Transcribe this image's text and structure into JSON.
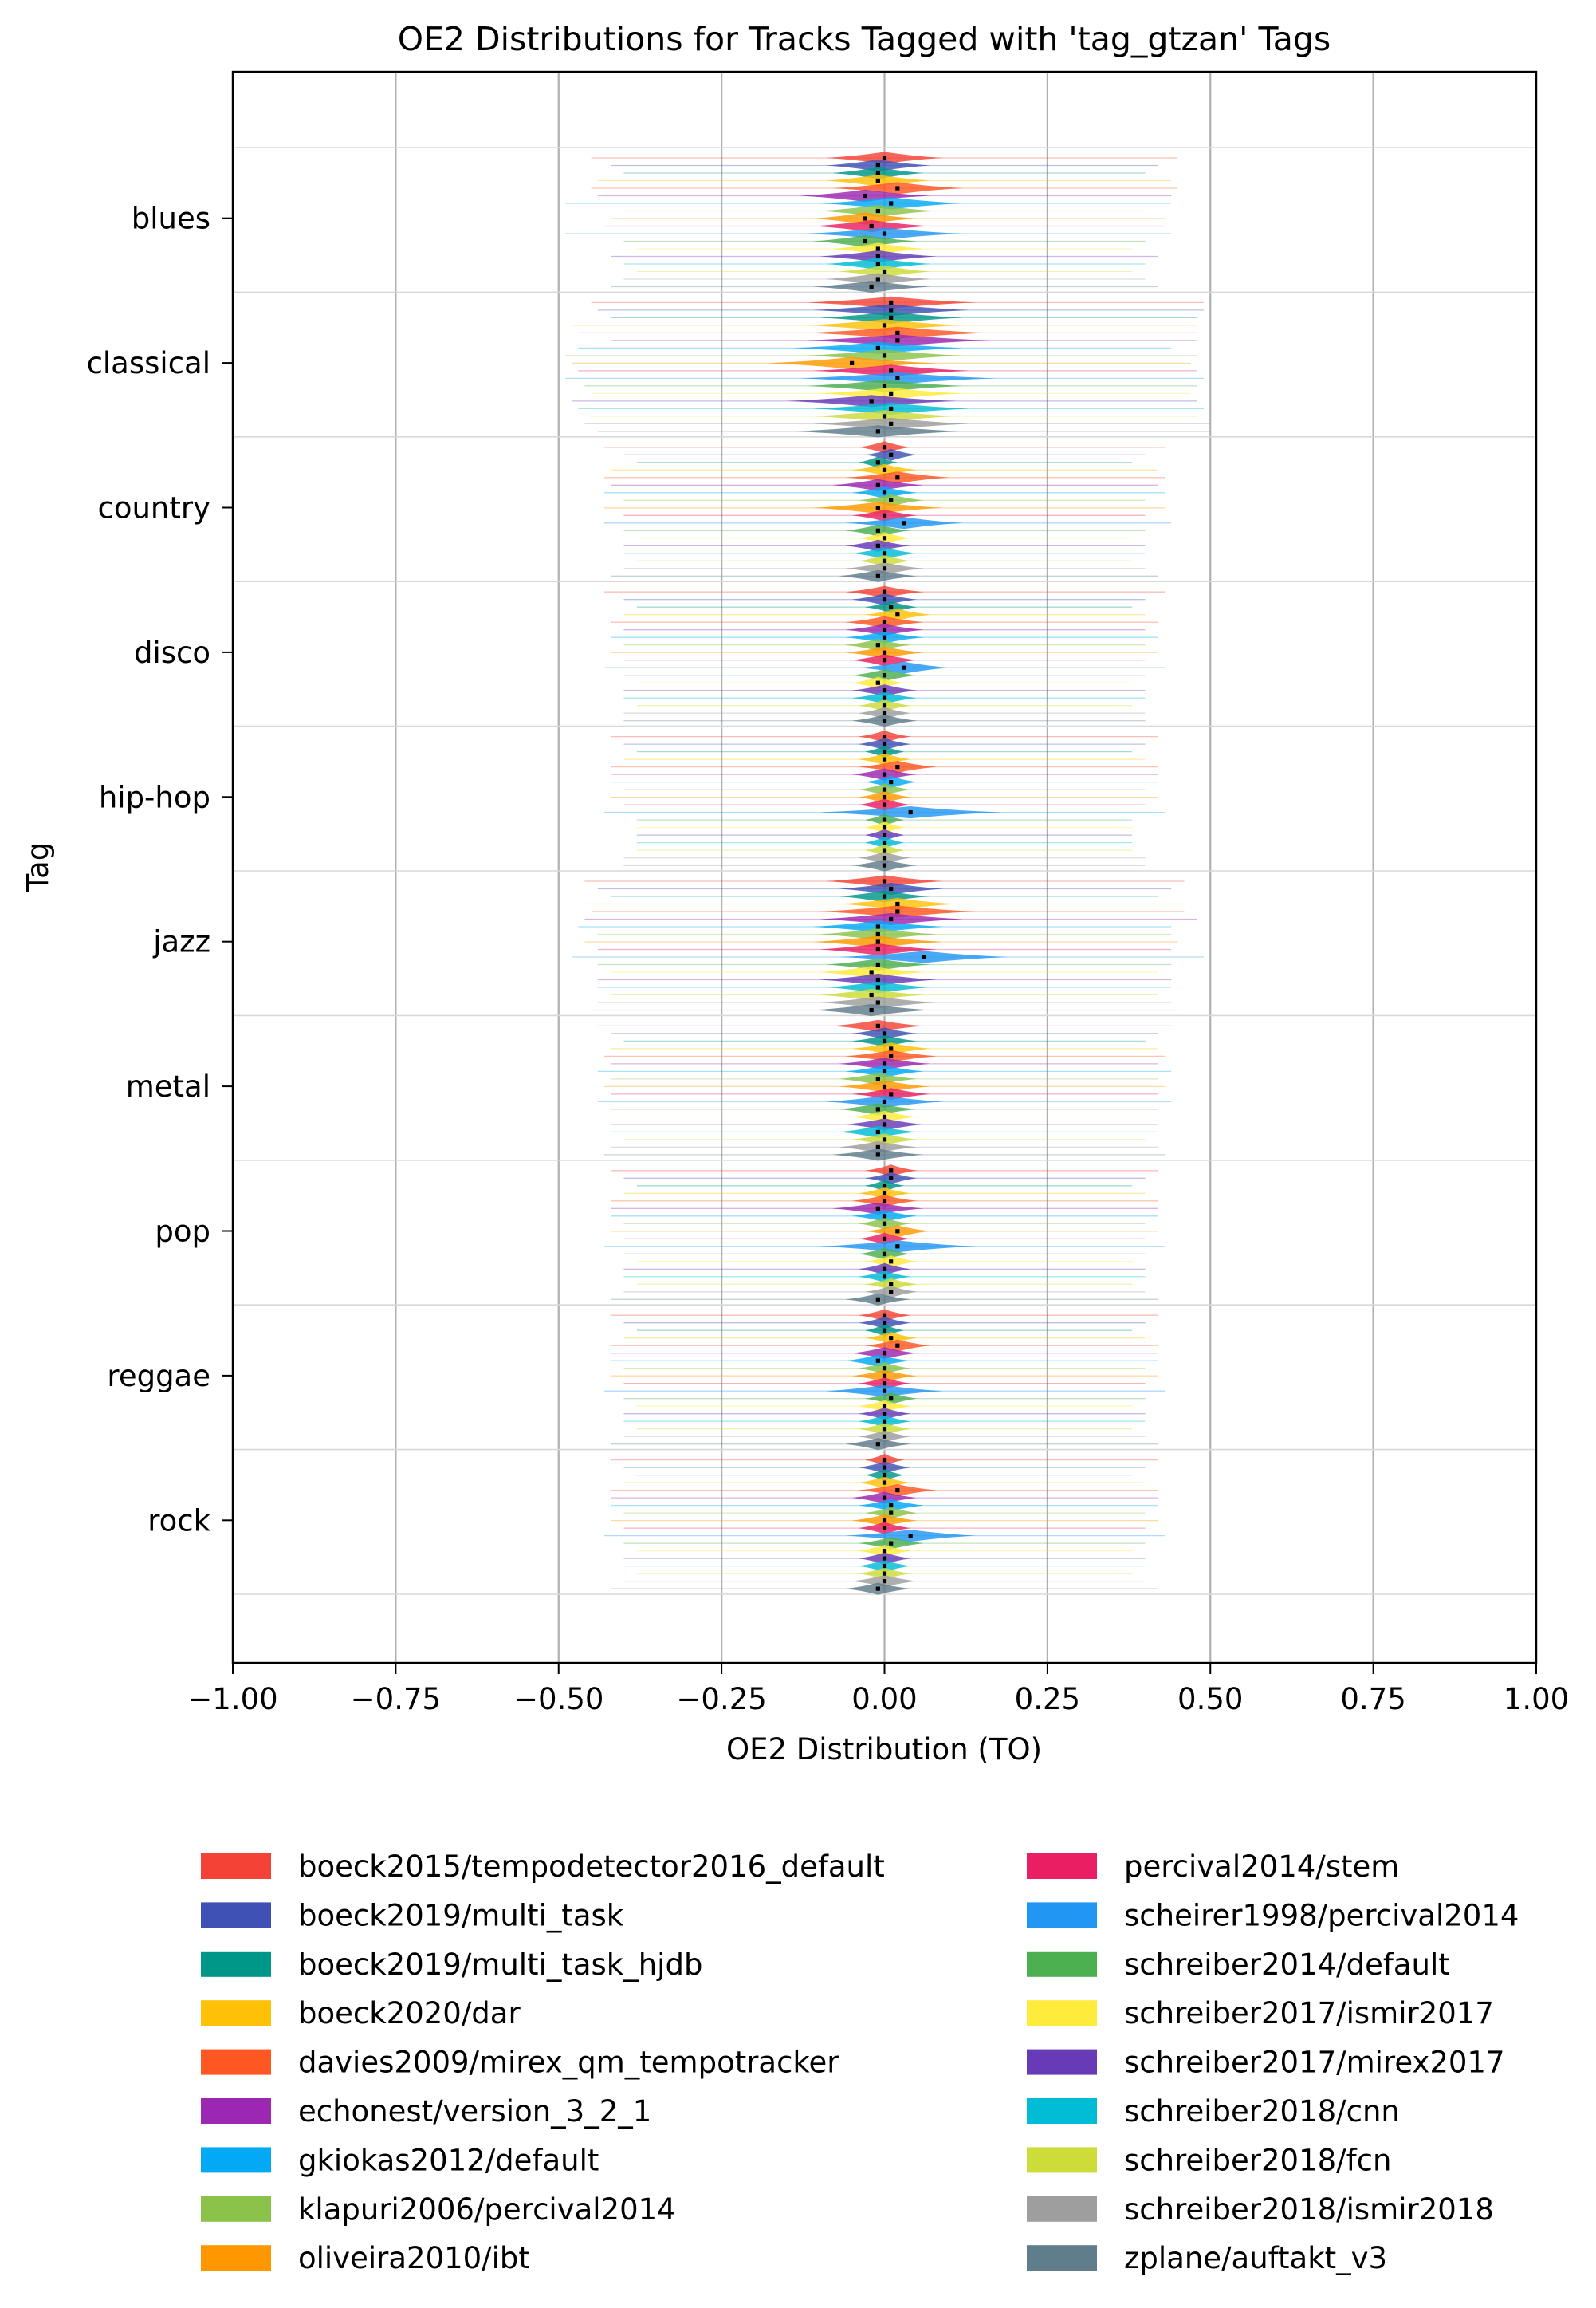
{
  "chart_data": {
    "type": "violin",
    "title": "OE2 Distributions for Tracks Tagged with 'tag_gtzan' Tags",
    "xlabel": "OE2 Distribution (TO)",
    "ylabel": "Tag",
    "xlim": [
      -1.0,
      1.0
    ],
    "x_ticks": [
      "−1.00",
      "−0.75",
      "−0.50",
      "−0.25",
      "0.00",
      "0.25",
      "0.50",
      "0.75",
      "1.00"
    ],
    "x_tick_values": [
      -1.0,
      -0.75,
      -0.5,
      -0.25,
      0.0,
      0.25,
      0.5,
      0.75,
      1.0
    ],
    "grid": "x-major",
    "legend_position": "bottom",
    "legend_columns": 2,
    "categories": [
      "blues",
      "classical",
      "country",
      "disco",
      "hip-hop",
      "jazz",
      "metal",
      "pop",
      "reggae",
      "rock"
    ],
    "series": [
      {
        "name": "boeck2015/tempodetector2016_default",
        "color": "#f44336"
      },
      {
        "name": "boeck2019/multi_task",
        "color": "#3f51b5"
      },
      {
        "name": "boeck2019/multi_task_hjdb",
        "color": "#009688"
      },
      {
        "name": "boeck2020/dar",
        "color": "#ffc107"
      },
      {
        "name": "davies2009/mirex_qm_tempotracker",
        "color": "#ff5722"
      },
      {
        "name": "echonest/version_3_2_1",
        "color": "#9c27b0"
      },
      {
        "name": "gkiokas2012/default",
        "color": "#03a9f4"
      },
      {
        "name": "klapuri2006/percival2014",
        "color": "#8bc34a"
      },
      {
        "name": "oliveira2010/ibt",
        "color": "#ff9800"
      },
      {
        "name": "percival2014/stem",
        "color": "#e91e63"
      },
      {
        "name": "scheirer1998/percival2014",
        "color": "#2196f3"
      },
      {
        "name": "schreiber2014/default",
        "color": "#4caf50"
      },
      {
        "name": "schreiber2017/ismir2017",
        "color": "#ffeb3b"
      },
      {
        "name": "schreiber2017/mirex2017",
        "color": "#673ab7"
      },
      {
        "name": "schreiber2018/cnn",
        "color": "#00bcd4"
      },
      {
        "name": "schreiber2018/fcn",
        "color": "#cddc39"
      },
      {
        "name": "schreiber2018/ismir2018",
        "color": "#9e9e9e"
      },
      {
        "name": "zplane/auftakt_v3",
        "color": "#607d8b"
      }
    ],
    "median_oe2": [
      [
        0.0,
        -0.01,
        -0.01,
        -0.01,
        0.02,
        -0.03,
        0.01,
        -0.01,
        -0.03,
        -0.02,
        0.0,
        -0.03,
        -0.01,
        -0.01,
        -0.01,
        0.0,
        -0.01,
        -0.02
      ],
      [
        0.01,
        0.01,
        0.01,
        0.0,
        0.02,
        0.02,
        -0.01,
        0.0,
        -0.05,
        0.01,
        0.02,
        0.0,
        0.01,
        -0.02,
        0.01,
        0.0,
        0.01,
        -0.01
      ],
      [
        0.0,
        0.01,
        -0.01,
        0.0,
        0.02,
        -0.01,
        0.0,
        0.01,
        -0.01,
        0.0,
        0.03,
        -0.01,
        0.0,
        -0.01,
        0.0,
        0.0,
        0.0,
        -0.01
      ],
      [
        0.0,
        0.0,
        0.01,
        0.02,
        0.0,
        0.0,
        0.0,
        -0.01,
        0.0,
        0.0,
        0.03,
        0.0,
        -0.01,
        0.0,
        0.0,
        0.0,
        0.0,
        0.0
      ],
      [
        0.0,
        0.0,
        0.0,
        0.0,
        0.02,
        0.0,
        0.01,
        0.0,
        0.0,
        0.0,
        0.04,
        0.0,
        0.0,
        0.0,
        0.0,
        0.0,
        0.0,
        0.0
      ],
      [
        0.0,
        0.01,
        0.0,
        0.02,
        0.02,
        0.01,
        -0.01,
        -0.01,
        -0.01,
        -0.01,
        0.06,
        -0.01,
        -0.02,
        -0.01,
        -0.01,
        -0.02,
        -0.01,
        -0.02
      ],
      [
        -0.01,
        0.0,
        0.0,
        0.01,
        0.01,
        0.0,
        0.0,
        -0.01,
        0.0,
        0.01,
        0.0,
        -0.01,
        0.0,
        0.0,
        -0.01,
        0.0,
        -0.01,
        -0.01
      ],
      [
        0.01,
        0.01,
        0.0,
        0.0,
        0.0,
        -0.01,
        0.0,
        0.0,
        0.02,
        0.0,
        0.02,
        0.0,
        0.01,
        0.0,
        0.0,
        0.01,
        0.01,
        -0.01
      ],
      [
        0.0,
        0.0,
        0.0,
        0.01,
        0.02,
        0.0,
        -0.01,
        0.0,
        0.0,
        0.0,
        0.0,
        0.01,
        0.0,
        0.0,
        0.0,
        0.0,
        0.0,
        -0.01
      ],
      [
        0.0,
        0.0,
        0.0,
        0.0,
        0.02,
        0.0,
        0.01,
        0.01,
        0.0,
        0.0,
        0.04,
        0.01,
        0.0,
        0.0,
        0.0,
        0.0,
        0.0,
        -0.01
      ]
    ],
    "spread_oe2": [
      [
        0.09,
        0.08,
        0.07,
        0.08,
        0.1,
        0.1,
        0.11,
        0.09,
        0.08,
        0.09,
        0.12,
        0.08,
        0.07,
        0.09,
        0.08,
        0.07,
        0.08,
        0.09
      ],
      [
        0.13,
        0.12,
        0.11,
        0.12,
        0.14,
        0.14,
        0.13,
        0.12,
        0.13,
        0.12,
        0.15,
        0.12,
        0.11,
        0.13,
        0.12,
        0.11,
        0.12,
        0.13
      ],
      [
        0.04,
        0.04,
        0.03,
        0.05,
        0.08,
        0.07,
        0.05,
        0.05,
        0.1,
        0.05,
        0.09,
        0.05,
        0.04,
        0.05,
        0.05,
        0.04,
        0.06,
        0.06
      ],
      [
        0.06,
        0.05,
        0.04,
        0.05,
        0.06,
        0.06,
        0.06,
        0.05,
        0.06,
        0.05,
        0.07,
        0.05,
        0.04,
        0.05,
        0.05,
        0.04,
        0.04,
        0.05
      ],
      [
        0.04,
        0.04,
        0.03,
        0.04,
        0.06,
        0.05,
        0.04,
        0.04,
        0.04,
        0.04,
        0.14,
        0.03,
        0.03,
        0.03,
        0.03,
        0.03,
        0.04,
        0.05
      ],
      [
        0.09,
        0.08,
        0.07,
        0.09,
        0.12,
        0.11,
        0.1,
        0.09,
        0.1,
        0.09,
        0.13,
        0.08,
        0.08,
        0.09,
        0.08,
        0.08,
        0.09,
        0.09
      ],
      [
        0.07,
        0.05,
        0.05,
        0.06,
        0.07,
        0.07,
        0.06,
        0.06,
        0.07,
        0.06,
        0.09,
        0.06,
        0.05,
        0.06,
        0.06,
        0.05,
        0.06,
        0.07
      ],
      [
        0.04,
        0.04,
        0.03,
        0.04,
        0.05,
        0.07,
        0.05,
        0.04,
        0.05,
        0.04,
        0.12,
        0.04,
        0.04,
        0.04,
        0.04,
        0.04,
        0.04,
        0.05
      ],
      [
        0.04,
        0.04,
        0.03,
        0.04,
        0.05,
        0.05,
        0.05,
        0.04,
        0.05,
        0.04,
        0.09,
        0.04,
        0.04,
        0.04,
        0.04,
        0.04,
        0.04,
        0.05
      ],
      [
        0.03,
        0.04,
        0.03,
        0.04,
        0.06,
        0.05,
        0.05,
        0.04,
        0.05,
        0.04,
        0.1,
        0.05,
        0.04,
        0.04,
        0.04,
        0.04,
        0.05,
        0.05
      ]
    ],
    "range_oe2": [
      [
        [
          -0.45,
          0.45
        ],
        [
          -0.42,
          0.42
        ],
        [
          -0.4,
          0.4
        ],
        [
          -0.44,
          0.44
        ],
        [
          -0.45,
          0.45
        ],
        [
          -0.44,
          0.44
        ],
        [
          -0.49,
          0.44
        ],
        [
          -0.4,
          0.4
        ],
        [
          -0.42,
          0.43
        ],
        [
          -0.43,
          0.43
        ],
        [
          -0.49,
          0.44
        ],
        [
          -0.4,
          0.4
        ],
        [
          -0.38,
          0.38
        ],
        [
          -0.42,
          0.42
        ],
        [
          -0.4,
          0.4
        ],
        [
          -0.38,
          0.38
        ],
        [
          -0.4,
          0.4
        ],
        [
          -0.42,
          0.42
        ]
      ],
      [
        [
          -0.45,
          0.49
        ],
        [
          -0.44,
          0.49
        ],
        [
          -0.42,
          0.48
        ],
        [
          -0.48,
          0.48
        ],
        [
          -0.47,
          0.48
        ],
        [
          -0.42,
          0.48
        ],
        [
          -0.47,
          0.44
        ],
        [
          -0.49,
          0.48
        ],
        [
          -0.48,
          0.47
        ],
        [
          -0.47,
          0.48
        ],
        [
          -0.49,
          0.49
        ],
        [
          -0.46,
          0.48
        ],
        [
          -0.45,
          0.47
        ],
        [
          -0.48,
          0.48
        ],
        [
          -0.47,
          0.49
        ],
        [
          -0.45,
          0.48
        ],
        [
          -0.46,
          0.5
        ],
        [
          -0.44,
          0.5
        ]
      ],
      [
        [
          -0.43,
          0.43
        ],
        [
          -0.4,
          0.4
        ],
        [
          -0.38,
          0.38
        ],
        [
          -0.42,
          0.42
        ],
        [
          -0.43,
          0.43
        ],
        [
          -0.42,
          0.42
        ],
        [
          -0.43,
          0.43
        ],
        [
          -0.4,
          0.4
        ],
        [
          -0.43,
          0.43
        ],
        [
          -0.4,
          0.4
        ],
        [
          -0.43,
          0.44
        ],
        [
          -0.4,
          0.4
        ],
        [
          -0.38,
          0.38
        ],
        [
          -0.4,
          0.4
        ],
        [
          -0.4,
          0.4
        ],
        [
          -0.38,
          0.38
        ],
        [
          -0.4,
          0.4
        ],
        [
          -0.42,
          0.42
        ]
      ],
      [
        [
          -0.43,
          0.43
        ],
        [
          -0.4,
          0.4
        ],
        [
          -0.38,
          0.38
        ],
        [
          -0.4,
          0.4
        ],
        [
          -0.42,
          0.42
        ],
        [
          -0.4,
          0.4
        ],
        [
          -0.42,
          0.42
        ],
        [
          -0.4,
          0.4
        ],
        [
          -0.42,
          0.42
        ],
        [
          -0.4,
          0.4
        ],
        [
          -0.43,
          0.43
        ],
        [
          -0.4,
          0.4
        ],
        [
          -0.38,
          0.38
        ],
        [
          -0.4,
          0.4
        ],
        [
          -0.4,
          0.4
        ],
        [
          -0.38,
          0.38
        ],
        [
          -0.4,
          0.4
        ],
        [
          -0.4,
          0.4
        ]
      ],
      [
        [
          -0.42,
          0.42
        ],
        [
          -0.4,
          0.4
        ],
        [
          -0.38,
          0.38
        ],
        [
          -0.4,
          0.4
        ],
        [
          -0.42,
          0.42
        ],
        [
          -0.42,
          0.42
        ],
        [
          -0.42,
          0.42
        ],
        [
          -0.4,
          0.4
        ],
        [
          -0.42,
          0.42
        ],
        [
          -0.4,
          0.4
        ],
        [
          -0.43,
          0.43
        ],
        [
          -0.38,
          0.38
        ],
        [
          -0.38,
          0.38
        ],
        [
          -0.38,
          0.38
        ],
        [
          -0.38,
          0.38
        ],
        [
          -0.38,
          0.38
        ],
        [
          -0.4,
          0.4
        ],
        [
          -0.4,
          0.4
        ]
      ],
      [
        [
          -0.46,
          0.46
        ],
        [
          -0.44,
          0.44
        ],
        [
          -0.42,
          0.42
        ],
        [
          -0.46,
          0.46
        ],
        [
          -0.45,
          0.46
        ],
        [
          -0.46,
          0.48
        ],
        [
          -0.47,
          0.44
        ],
        [
          -0.44,
          0.44
        ],
        [
          -0.46,
          0.45
        ],
        [
          -0.44,
          0.44
        ],
        [
          -0.48,
          0.49
        ],
        [
          -0.44,
          0.44
        ],
        [
          -0.42,
          0.42
        ],
        [
          -0.44,
          0.44
        ],
        [
          -0.44,
          0.44
        ],
        [
          -0.42,
          0.42
        ],
        [
          -0.44,
          0.44
        ],
        [
          -0.45,
          0.45
        ]
      ],
      [
        [
          -0.44,
          0.44
        ],
        [
          -0.42,
          0.42
        ],
        [
          -0.4,
          0.4
        ],
        [
          -0.42,
          0.42
        ],
        [
          -0.43,
          0.43
        ],
        [
          -0.42,
          0.42
        ],
        [
          -0.44,
          0.44
        ],
        [
          -0.42,
          0.42
        ],
        [
          -0.43,
          0.43
        ],
        [
          -0.42,
          0.42
        ],
        [
          -0.44,
          0.44
        ],
        [
          -0.42,
          0.42
        ],
        [
          -0.4,
          0.4
        ],
        [
          -0.42,
          0.42
        ],
        [
          -0.42,
          0.42
        ],
        [
          -0.4,
          0.4
        ],
        [
          -0.42,
          0.42
        ],
        [
          -0.43,
          0.43
        ]
      ],
      [
        [
          -0.42,
          0.42
        ],
        [
          -0.4,
          0.4
        ],
        [
          -0.38,
          0.38
        ],
        [
          -0.4,
          0.4
        ],
        [
          -0.42,
          0.42
        ],
        [
          -0.42,
          0.42
        ],
        [
          -0.42,
          0.42
        ],
        [
          -0.4,
          0.4
        ],
        [
          -0.42,
          0.42
        ],
        [
          -0.4,
          0.4
        ],
        [
          -0.43,
          0.43
        ],
        [
          -0.4,
          0.4
        ],
        [
          -0.38,
          0.38
        ],
        [
          -0.4,
          0.4
        ],
        [
          -0.4,
          0.4
        ],
        [
          -0.38,
          0.38
        ],
        [
          -0.4,
          0.4
        ],
        [
          -0.42,
          0.42
        ]
      ],
      [
        [
          -0.42,
          0.42
        ],
        [
          -0.4,
          0.4
        ],
        [
          -0.38,
          0.38
        ],
        [
          -0.4,
          0.4
        ],
        [
          -0.42,
          0.42
        ],
        [
          -0.42,
          0.42
        ],
        [
          -0.42,
          0.42
        ],
        [
          -0.4,
          0.4
        ],
        [
          -0.42,
          0.42
        ],
        [
          -0.4,
          0.4
        ],
        [
          -0.43,
          0.43
        ],
        [
          -0.4,
          0.4
        ],
        [
          -0.38,
          0.38
        ],
        [
          -0.4,
          0.4
        ],
        [
          -0.4,
          0.4
        ],
        [
          -0.38,
          0.38
        ],
        [
          -0.4,
          0.4
        ],
        [
          -0.42,
          0.42
        ]
      ],
      [
        [
          -0.42,
          0.42
        ],
        [
          -0.4,
          0.4
        ],
        [
          -0.38,
          0.38
        ],
        [
          -0.4,
          0.4
        ],
        [
          -0.42,
          0.42
        ],
        [
          -0.42,
          0.42
        ],
        [
          -0.42,
          0.42
        ],
        [
          -0.4,
          0.4
        ],
        [
          -0.42,
          0.42
        ],
        [
          -0.4,
          0.4
        ],
        [
          -0.43,
          0.43
        ],
        [
          -0.4,
          0.4
        ],
        [
          -0.38,
          0.38
        ],
        [
          -0.4,
          0.4
        ],
        [
          -0.4,
          0.4
        ],
        [
          -0.38,
          0.38
        ],
        [
          -0.4,
          0.4
        ],
        [
          -0.42,
          0.42
        ]
      ]
    ]
  }
}
